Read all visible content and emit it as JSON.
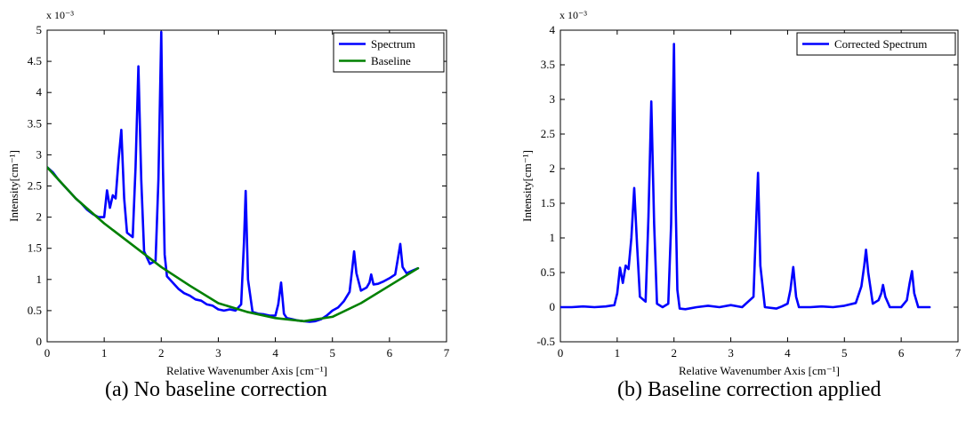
{
  "captions": {
    "a": "(a) No baseline correction",
    "b": "(b) Baseline correction applied"
  },
  "chart_data": [
    {
      "type": "line",
      "xlabel": "Relative Wavenumber Axis [cm⁻¹]",
      "ylabel": "Intensity[cm⁻¹]",
      "y_multiplier": "x 10⁻³",
      "xlim": [
        0,
        7
      ],
      "ylim": [
        0,
        5
      ],
      "xticks": [
        0,
        1,
        2,
        3,
        4,
        5,
        6,
        7
      ],
      "yticks": [
        0,
        0.5,
        1,
        1.5,
        2,
        2.5,
        3,
        3.5,
        4,
        4.5,
        5
      ],
      "grid": false,
      "legend_position": "top-right",
      "series": [
        {
          "name": "Spectrum",
          "color": "#0000ff",
          "x": [
            0.0,
            0.1,
            0.2,
            0.3,
            0.4,
            0.5,
            0.6,
            0.7,
            0.8,
            0.9,
            1.0,
            1.05,
            1.1,
            1.15,
            1.2,
            1.25,
            1.3,
            1.35,
            1.4,
            1.5,
            1.55,
            1.6,
            1.65,
            1.7,
            1.8,
            1.9,
            1.95,
            2.0,
            2.03,
            2.06,
            2.1,
            2.2,
            2.3,
            2.4,
            2.5,
            2.6,
            2.7,
            2.8,
            2.9,
            3.0,
            3.1,
            3.2,
            3.3,
            3.4,
            3.45,
            3.48,
            3.52,
            3.6,
            3.7,
            3.8,
            3.9,
            4.0,
            4.05,
            4.1,
            4.15,
            4.2,
            4.3,
            4.4,
            4.5,
            4.6,
            4.7,
            4.8,
            4.9,
            5.0,
            5.1,
            5.2,
            5.3,
            5.35,
            5.38,
            5.42,
            5.5,
            5.6,
            5.65,
            5.68,
            5.72,
            5.8,
            5.9,
            6.0,
            6.1,
            6.15,
            6.19,
            6.23,
            6.3,
            6.4,
            6.5
          ],
          "y": [
            2.8,
            2.72,
            2.6,
            2.5,
            2.4,
            2.3,
            2.22,
            2.12,
            2.05,
            2.0,
            2.0,
            2.43,
            2.15,
            2.35,
            2.3,
            2.9,
            3.4,
            2.3,
            1.75,
            1.68,
            2.8,
            4.42,
            2.6,
            1.45,
            1.25,
            1.3,
            2.6,
            4.97,
            2.8,
            1.4,
            1.05,
            0.95,
            0.85,
            0.78,
            0.74,
            0.68,
            0.66,
            0.6,
            0.58,
            0.52,
            0.5,
            0.52,
            0.5,
            0.6,
            1.6,
            2.42,
            1.0,
            0.48,
            0.45,
            0.44,
            0.42,
            0.42,
            0.6,
            0.95,
            0.45,
            0.38,
            0.36,
            0.34,
            0.33,
            0.32,
            0.33,
            0.36,
            0.42,
            0.5,
            0.55,
            0.65,
            0.8,
            1.2,
            1.45,
            1.1,
            0.82,
            0.87,
            0.95,
            1.08,
            0.92,
            0.93,
            0.97,
            1.02,
            1.08,
            1.35,
            1.57,
            1.2,
            1.1,
            1.14,
            1.18
          ]
        },
        {
          "name": "Baseline",
          "color": "#008000",
          "x": [
            0.0,
            0.5,
            1.0,
            1.5,
            2.0,
            2.5,
            3.0,
            3.5,
            4.0,
            4.5,
            5.0,
            5.5,
            6.0,
            6.5
          ],
          "y": [
            2.8,
            2.3,
            1.9,
            1.55,
            1.2,
            0.9,
            0.62,
            0.48,
            0.38,
            0.33,
            0.4,
            0.62,
            0.9,
            1.18
          ]
        }
      ]
    },
    {
      "type": "line",
      "xlabel": "Relative Wavenumber Axis [cm⁻¹]",
      "ylabel": "Intensity[cm⁻¹]",
      "y_multiplier": "x 10⁻³",
      "xlim": [
        0,
        7
      ],
      "ylim": [
        -0.5,
        4
      ],
      "xticks": [
        0,
        1,
        2,
        3,
        4,
        5,
        6,
        7
      ],
      "yticks": [
        -0.5,
        0,
        0.5,
        1,
        1.5,
        2,
        2.5,
        3,
        3.5,
        4
      ],
      "grid": false,
      "legend_position": "top-right",
      "series": [
        {
          "name": "Corrected Spectrum",
          "color": "#0000ff",
          "x": [
            0.0,
            0.2,
            0.4,
            0.6,
            0.8,
            0.95,
            1.0,
            1.05,
            1.1,
            1.15,
            1.2,
            1.25,
            1.3,
            1.35,
            1.4,
            1.5,
            1.55,
            1.6,
            1.65,
            1.7,
            1.8,
            1.9,
            1.95,
            2.0,
            2.03,
            2.06,
            2.1,
            2.2,
            2.4,
            2.6,
            2.8,
            3.0,
            3.2,
            3.4,
            3.45,
            3.48,
            3.52,
            3.6,
            3.8,
            3.9,
            4.0,
            4.05,
            4.1,
            4.15,
            4.2,
            4.4,
            4.6,
            4.8,
            5.0,
            5.2,
            5.3,
            5.35,
            5.38,
            5.42,
            5.5,
            5.6,
            5.65,
            5.68,
            5.72,
            5.8,
            6.0,
            6.1,
            6.15,
            6.19,
            6.23,
            6.3,
            6.5
          ],
          "y": [
            0.0,
            0.0,
            0.01,
            0.0,
            0.01,
            0.03,
            0.2,
            0.57,
            0.35,
            0.6,
            0.55,
            1.0,
            1.72,
            0.9,
            0.15,
            0.08,
            1.3,
            2.97,
            1.2,
            0.05,
            0.0,
            0.05,
            1.2,
            3.8,
            1.5,
            0.25,
            -0.02,
            -0.03,
            0.0,
            0.02,
            0.0,
            0.03,
            0.0,
            0.15,
            1.3,
            1.94,
            0.6,
            0.0,
            -0.02,
            0.01,
            0.05,
            0.25,
            0.58,
            0.15,
            0.0,
            0.0,
            0.01,
            0.0,
            0.02,
            0.06,
            0.3,
            0.6,
            0.83,
            0.5,
            0.05,
            0.1,
            0.2,
            0.32,
            0.15,
            0.0,
            0.0,
            0.1,
            0.35,
            0.52,
            0.2,
            0.0,
            0.0
          ]
        }
      ]
    }
  ]
}
